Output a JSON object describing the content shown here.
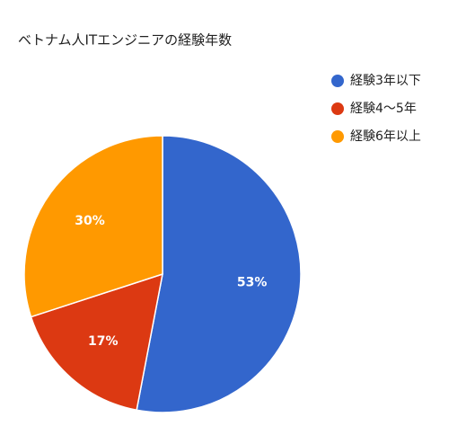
{
  "chart_data": {
    "type": "pie",
    "title": "ベトナム人ITエンジニアの経験年数",
    "categories": [
      "経験3年以下",
      "経験4～5年",
      "経験6年以上"
    ],
    "values": [
      53,
      17,
      30
    ],
    "value_labels": [
      "53%",
      "17%",
      "30%"
    ],
    "colors": [
      "#3366cc",
      "#dc3912",
      "#ff9900"
    ],
    "legend": "right"
  }
}
